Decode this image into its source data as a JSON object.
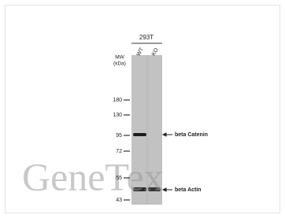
{
  "header": {
    "sample": "293T",
    "lanes": [
      "WT",
      "KO"
    ]
  },
  "mw_label": [
    "MW",
    "(kDa)"
  ],
  "markers": [
    "180",
    "130",
    "95",
    "72",
    "55",
    "43"
  ],
  "bands": [
    "beta Catenin",
    "beta Actin"
  ],
  "watermark": "GeneTex"
}
